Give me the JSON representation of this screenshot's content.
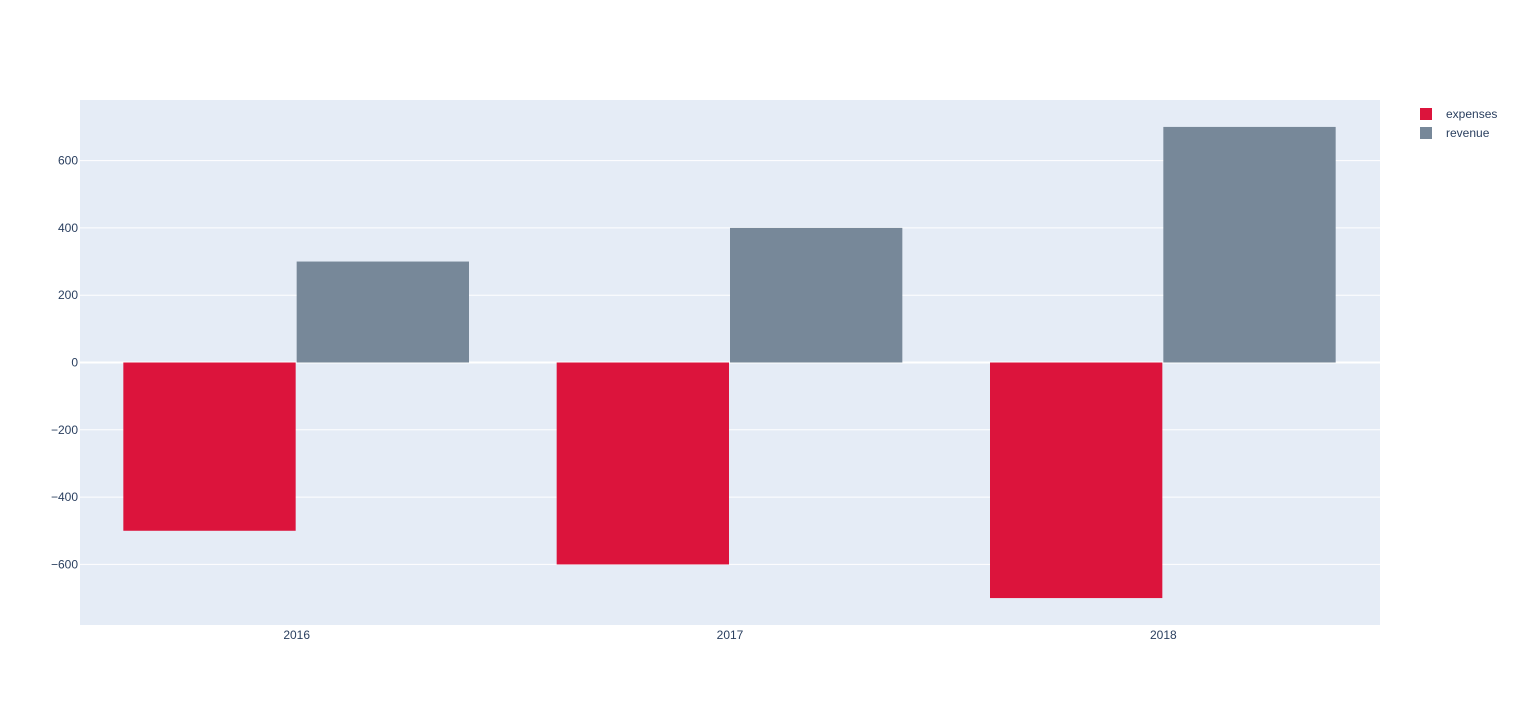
{
  "chart_data": {
    "type": "bar",
    "categories": [
      "2016",
      "2017",
      "2018"
    ],
    "series": [
      {
        "name": "expenses",
        "values": [
          -500,
          -600,
          -700
        ],
        "color": "#dc143c"
      },
      {
        "name": "revenue",
        "values": [
          300,
          400,
          700
        ],
        "color": "#778899"
      }
    ],
    "title": "",
    "xlabel": "",
    "ylabel": "",
    "ylim": [
      -780,
      780
    ],
    "yticks": [
      -600,
      -400,
      -200,
      0,
      200,
      400,
      600
    ],
    "ytick_labels": [
      "−600",
      "−400",
      "−200",
      "0",
      "200",
      "400",
      "600"
    ],
    "grid": true,
    "legend_position": "top-right",
    "plot_background": "#e5ecf6",
    "gridline_color": "#ffffff"
  }
}
